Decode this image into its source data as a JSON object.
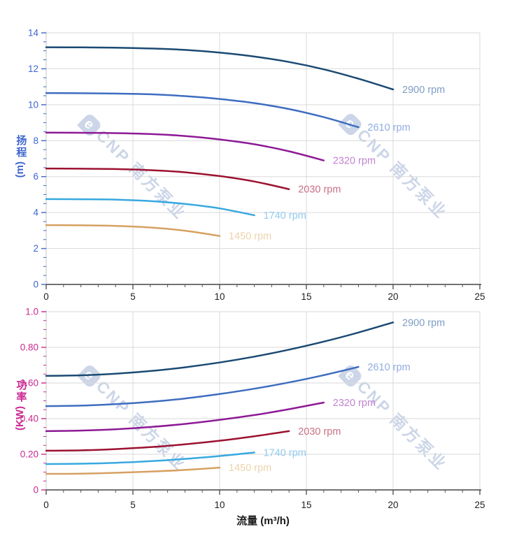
{
  "figure": {
    "background": "#ffffff",
    "grid_color": "#d9d9d9",
    "x_axis_color": "#444444",
    "tick_label_color": "#222222",
    "watermark": {
      "logo": "e",
      "text": "CNP 南方泵业",
      "color": "#c7d2e6"
    }
  },
  "chart_data": [
    {
      "type": "line",
      "title": "",
      "ylabel": "扬程",
      "ylabel_unit": "(m)",
      "xlabel": "流量 (m³/h)",
      "xlim": [
        0,
        25
      ],
      "ylim": [
        0,
        14
      ],
      "grid": true,
      "legend_position": "end-of-line labels",
      "axis_color": "#3f66cf",
      "y_ticks": {
        "majors": [
          {
            "v": 0,
            "label": "0"
          },
          {
            "v": 2,
            "label": "2"
          },
          {
            "v": 4,
            "label": "4"
          },
          {
            "v": 6,
            "label": "6"
          },
          {
            "v": 8,
            "label": "8"
          },
          {
            "v": 10,
            "label": "10"
          },
          {
            "v": 12,
            "label": "12"
          },
          {
            "v": 14,
            "label": "14"
          }
        ],
        "minor_step": 0.5
      },
      "x_ticks": {
        "majors": [
          {
            "v": 0,
            "label": "0"
          },
          {
            "v": 5,
            "label": "5"
          },
          {
            "v": 10,
            "label": "10"
          },
          {
            "v": 15,
            "label": "15"
          },
          {
            "v": 20,
            "label": "20"
          },
          {
            "v": 25,
            "label": "25"
          }
        ],
        "minor_step": 1
      },
      "series": [
        {
          "name": "2900 rpm",
          "label": "2900 rpm",
          "color": "#1b4a73",
          "label_color": "#7e9dc5",
          "x": [
            0,
            2,
            4,
            6,
            8,
            10,
            12,
            14,
            16,
            18,
            20
          ],
          "y": [
            13.2,
            13.19,
            13.17,
            13.13,
            13.05,
            12.9,
            12.68,
            12.38,
            11.97,
            11.45,
            10.85
          ]
        },
        {
          "name": "2610 rpm",
          "label": "2610 rpm",
          "color": "#3e6dbf",
          "label_color": "#90acdf",
          "x": [
            0,
            2,
            4,
            6,
            8,
            10,
            12,
            14,
            16,
            18
          ],
          "y": [
            10.65,
            10.64,
            10.62,
            10.58,
            10.48,
            10.32,
            10.09,
            9.76,
            9.31,
            8.75
          ]
        },
        {
          "name": "2320 rpm",
          "label": "2320 rpm",
          "color": "#8d1a95",
          "label_color": "#c183cf",
          "x": [
            0,
            2,
            4,
            6,
            8,
            10,
            12,
            14,
            16
          ],
          "y": [
            8.45,
            8.44,
            8.42,
            8.37,
            8.26,
            8.07,
            7.8,
            7.41,
            6.9
          ]
        },
        {
          "name": "2030 rpm",
          "label": "2030 rpm",
          "color": "#9c1230",
          "label_color": "#c96f85",
          "x": [
            0,
            2,
            4,
            6,
            8,
            10,
            12,
            14
          ],
          "y": [
            6.45,
            6.44,
            6.42,
            6.36,
            6.24,
            6.03,
            5.73,
            5.3
          ]
        },
        {
          "name": "1740 rpm",
          "label": "1740 rpm",
          "color": "#38a8e0",
          "label_color": "#90cbee",
          "x": [
            0,
            2,
            4,
            6,
            8,
            10,
            12
          ],
          "y": [
            4.75,
            4.74,
            4.72,
            4.64,
            4.48,
            4.23,
            3.85
          ]
        },
        {
          "name": "1450 rpm",
          "label": "1450 rpm",
          "color": "#d6a162",
          "label_color": "#edd3ab",
          "x": [
            0,
            2,
            4,
            6,
            8,
            10
          ],
          "y": [
            3.3,
            3.29,
            3.26,
            3.17,
            2.99,
            2.7
          ]
        }
      ]
    },
    {
      "type": "line",
      "title": "",
      "ylabel": "功率",
      "ylabel_unit": "(KW)",
      "xlabel": "流量 (m³/h)",
      "xlim": [
        0,
        25
      ],
      "ylim": [
        0,
        1.0
      ],
      "grid": true,
      "legend_position": "end-of-line labels",
      "axis_color": "#ca2a92",
      "y_ticks": {
        "majors": [
          {
            "v": 0,
            "label": "0"
          },
          {
            "v": 0.2,
            "label": "0.20"
          },
          {
            "v": 0.4,
            "label": "0.40"
          },
          {
            "v": 0.6,
            "label": "0.60"
          },
          {
            "v": 0.8,
            "label": "0.80"
          },
          {
            "v": 1.0,
            "label": "1.0"
          }
        ],
        "minor_step": 0.05
      },
      "x_ticks": {
        "majors": [
          {
            "v": 0,
            "label": "0"
          },
          {
            "v": 5,
            "label": "5"
          },
          {
            "v": 10,
            "label": "10"
          },
          {
            "v": 15,
            "label": "15"
          },
          {
            "v": 20,
            "label": "20"
          },
          {
            "v": 25,
            "label": "25"
          }
        ],
        "minor_step": 1
      },
      "series": [
        {
          "name": "2900 rpm",
          "label": "2900 rpm",
          "color": "#1b4a73",
          "label_color": "#7e9dc5",
          "x": [
            0,
            2,
            4,
            6,
            8,
            10,
            12,
            14,
            16,
            18,
            20
          ],
          "y": [
            0.64,
            0.643,
            0.652,
            0.667,
            0.688,
            0.715,
            0.748,
            0.787,
            0.832,
            0.883,
            0.94
          ]
        },
        {
          "name": "2610 rpm",
          "label": "2610 rpm",
          "color": "#3e6dbf",
          "label_color": "#90acdf",
          "x": [
            0,
            2,
            4,
            6,
            8,
            10,
            12,
            14,
            16,
            18
          ],
          "y": [
            0.47,
            0.473,
            0.481,
            0.494,
            0.513,
            0.538,
            0.568,
            0.603,
            0.644,
            0.69
          ]
        },
        {
          "name": "2320 rpm",
          "label": "2320 rpm",
          "color": "#8d1a95",
          "label_color": "#c183cf",
          "x": [
            0,
            2,
            4,
            6,
            8,
            10,
            12,
            14,
            16
          ],
          "y": [
            0.33,
            0.333,
            0.34,
            0.353,
            0.37,
            0.393,
            0.42,
            0.453,
            0.49
          ]
        },
        {
          "name": "2030 rpm",
          "label": "2030 rpm",
          "color": "#9c1230",
          "label_color": "#c96f85",
          "x": [
            0,
            2,
            4,
            6,
            8,
            10,
            12,
            14
          ],
          "y": [
            0.22,
            0.222,
            0.229,
            0.24,
            0.256,
            0.276,
            0.301,
            0.33
          ]
        },
        {
          "name": "1740 rpm",
          "label": "1740 rpm",
          "color": "#38a8e0",
          "label_color": "#90cbee",
          "x": [
            0,
            2,
            4,
            6,
            8,
            10,
            12
          ],
          "y": [
            0.145,
            0.147,
            0.152,
            0.161,
            0.174,
            0.19,
            0.21
          ]
        },
        {
          "name": "1450 rpm",
          "label": "1450 rpm",
          "color": "#d6a162",
          "label_color": "#edd3ab",
          "x": [
            0,
            2,
            4,
            6,
            8,
            10
          ],
          "y": [
            0.09,
            0.091,
            0.096,
            0.103,
            0.112,
            0.125
          ]
        }
      ]
    }
  ]
}
